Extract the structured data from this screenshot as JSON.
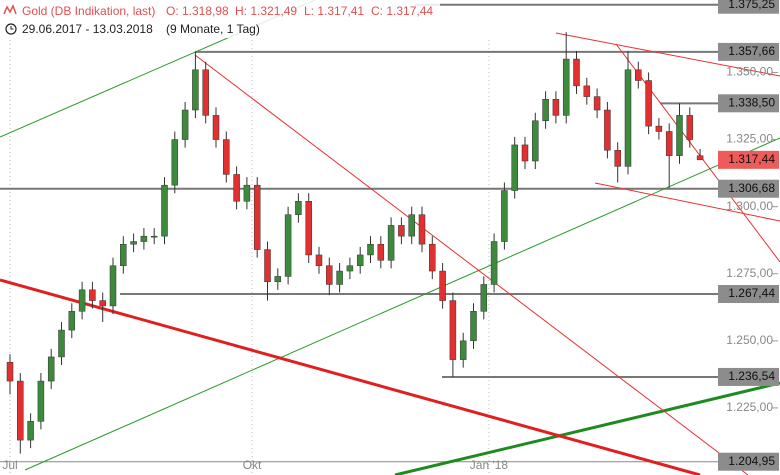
{
  "chart_data": {
    "type": "candlestick",
    "title": "Gold (DB Indikation, last)",
    "quote": [
      "O: 1.318,98",
      "H: 1.321,49",
      "L: 1.317,41",
      "C: 1.317,44"
    ],
    "subtitle": "29.06.2017 - 13.03.2018",
    "period": "(9 Monate, 1 Tag)",
    "up_color": "#3d8a3d",
    "down_color": "#e03030",
    "ylim": [
      1200,
      1377
    ],
    "xlim": [
      -1,
      70
    ],
    "yticks": [
      {
        "value": 1350,
        "label": "1.350,00"
      },
      {
        "value": 1325,
        "label": "1.325,00"
      },
      {
        "value": 1300,
        "label": "1.300,00"
      },
      {
        "value": 1275,
        "label": "1.275,00"
      },
      {
        "value": 1250,
        "label": "1.250,00"
      },
      {
        "value": 1225,
        "label": "1.225,00"
      }
    ],
    "xticks": [
      {
        "value": 0,
        "label": "Jul"
      },
      {
        "value": 23.5,
        "label": "Okt"
      },
      {
        "value": 46.5,
        "label": "Jan '18"
      }
    ],
    "levels": [
      {
        "value": 1375.25,
        "label": "1.375,25"
      },
      {
        "value": 1357.66,
        "label": "1.357,66"
      },
      {
        "value": 1338.5,
        "label": "1.338,50"
      },
      {
        "value": 1317.44,
        "label": "1.317,44"
      },
      {
        "value": 1306.68,
        "label": "1.306,68"
      },
      {
        "value": 1267.44,
        "label": "1.267,44"
      },
      {
        "value": 1236.54,
        "label": "1.236,54"
      },
      {
        "value": 1204.95,
        "label": "1.204,95"
      }
    ],
    "open": [
      1242,
      1235,
      1213,
      1220,
      1235,
      1244,
      1254,
      1261,
      1269,
      1265,
      1263,
      1278,
      1286,
      1287,
      1289,
      1289,
      1308,
      1325,
      1336,
      1351,
      1334,
      1325,
      1312,
      1302,
      1308,
      1284,
      1272,
      1274,
      1297,
      1302,
      1282,
      1278,
      1271,
      1276,
      1278,
      1282,
      1286,
      1280,
      1293,
      1289,
      1297,
      1286,
      1276,
      1265,
      1243,
      1250,
      1261,
      1271,
      1287,
      1306,
      1323,
      1317,
      1332,
      1340,
      1334,
      1355,
      1345,
      1341,
      1336,
      1321,
      1315,
      1351,
      1347,
      1330,
      1328,
      1319,
      1334,
      1318.98
    ],
    "high": [
      1245,
      1238,
      1223,
      1238,
      1247,
      1257,
      1264,
      1272,
      1272,
      1268,
      1281,
      1289,
      1290,
      1292,
      1292,
      1311,
      1328,
      1339,
      1357.66,
      1354,
      1337,
      1328,
      1315,
      1311,
      1311,
      1287,
      1277,
      1300,
      1305,
      1305,
      1285,
      1281,
      1279,
      1281,
      1285,
      1289,
      1289,
      1296,
      1296,
      1300,
      1300,
      1289,
      1279,
      1268,
      1253,
      1264,
      1274,
      1290,
      1309,
      1326,
      1326,
      1335,
      1343,
      1343,
      1365,
      1358,
      1348,
      1344,
      1339,
      1324,
      1358,
      1354,
      1350,
      1333,
      1331,
      1338.5,
      1337,
      1321.49
    ],
    "low": [
      1230,
      1208,
      1210,
      1217,
      1232,
      1241,
      1251,
      1258,
      1262,
      1257,
      1260,
      1275,
      1283,
      1284,
      1286,
      1286,
      1305,
      1322,
      1333,
      1331,
      1322,
      1309,
      1299,
      1299,
      1281,
      1265,
      1269,
      1271,
      1294,
      1279,
      1275,
      1267,
      1268,
      1273,
      1275,
      1279,
      1277,
      1277,
      1286,
      1286,
      1283,
      1273,
      1262,
      1236.54,
      1240,
      1247,
      1258,
      1268,
      1284,
      1303,
      1314,
      1314,
      1329,
      1331,
      1331,
      1342,
      1338,
      1333,
      1318,
      1309,
      1312,
      1344,
      1327,
      1325,
      1307,
      1316,
      1322,
      1317.41
    ],
    "close": [
      1235,
      1213,
      1220,
      1235,
      1244,
      1254,
      1261,
      1269,
      1265,
      1263,
      1278,
      1286,
      1287,
      1289,
      1289,
      1308,
      1325,
      1336,
      1351,
      1334,
      1325,
      1312,
      1302,
      1308,
      1284,
      1272,
      1274,
      1297,
      1302,
      1282,
      1278,
      1271,
      1276,
      1278,
      1282,
      1286,
      1280,
      1293,
      1289,
      1297,
      1286,
      1276,
      1265,
      1243,
      1250,
      1261,
      1271,
      1287,
      1306,
      1323,
      1317,
      1332,
      1340,
      1334,
      1355,
      1345,
      1341,
      1336,
      1321,
      1315,
      1351,
      1347,
      1330,
      1328,
      1319,
      1334,
      1325,
      1317.44
    ]
  }
}
